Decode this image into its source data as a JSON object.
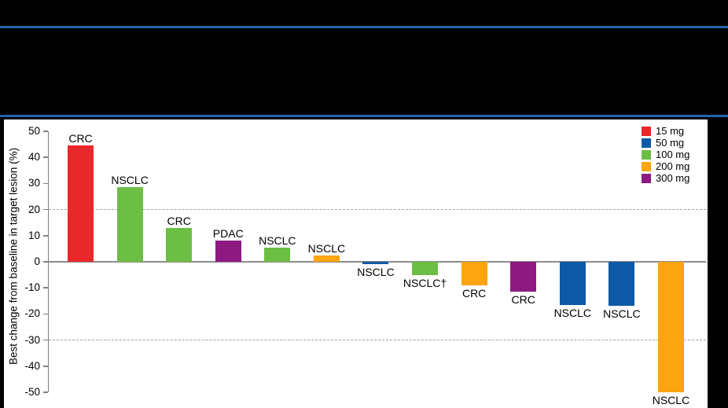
{
  "header": {
    "accent_color": "#2263AE"
  },
  "chart_data": {
    "type": "bar",
    "title": "",
    "ylabel": "Best change from baseline in target lesion (%)",
    "ylim": [
      -50,
      50
    ],
    "yticks": [
      50,
      40,
      30,
      20,
      10,
      0,
      -10,
      -20,
      -30,
      -40,
      -50
    ],
    "reference_lines": [
      20,
      -30
    ],
    "grid": "dashed horizontal reference lines at +20 and -30",
    "legend_position": "top-right",
    "legend": [
      {
        "label": "15 mg",
        "color": "#E9282C"
      },
      {
        "label": "50 mg",
        "color": "#0E59A6"
      },
      {
        "label": "100 mg",
        "color": "#6DBE45"
      },
      {
        "label": "200 mg",
        "color": "#FCA50F"
      },
      {
        "label": "300 mg",
        "color": "#8C1A80"
      }
    ],
    "bars": [
      {
        "label": "CRC",
        "dose": "15 mg",
        "value": 44.5
      },
      {
        "label": "NSCLC",
        "dose": "100 mg",
        "value": 28.5
      },
      {
        "label": "CRC",
        "dose": "100 mg",
        "value": 13
      },
      {
        "label": "PDAC",
        "dose": "300 mg",
        "value": 8
      },
      {
        "label": "NSCLC",
        "dose": "100 mg",
        "value": 5.5
      },
      {
        "label": "NSCLC",
        "dose": "200 mg",
        "value": 2.5
      },
      {
        "label": "NSCLC",
        "dose": "50 mg",
        "value": -1
      },
      {
        "label": "NSCLC†",
        "dose": "100 mg",
        "value": -5
      },
      {
        "label": "CRC",
        "dose": "200 mg",
        "value": -9
      },
      {
        "label": "CRC",
        "dose": "300 mg",
        "value": -11.5
      },
      {
        "label": "NSCLC",
        "dose": "50 mg",
        "value": -16.5
      },
      {
        "label": "NSCLC",
        "dose": "50 mg",
        "value": -17
      },
      {
        "label": "NSCLC",
        "dose": "200 mg",
        "value": -50
      }
    ],
    "axis_color": "#808080",
    "zero_line_color": "#8C8C8C"
  }
}
